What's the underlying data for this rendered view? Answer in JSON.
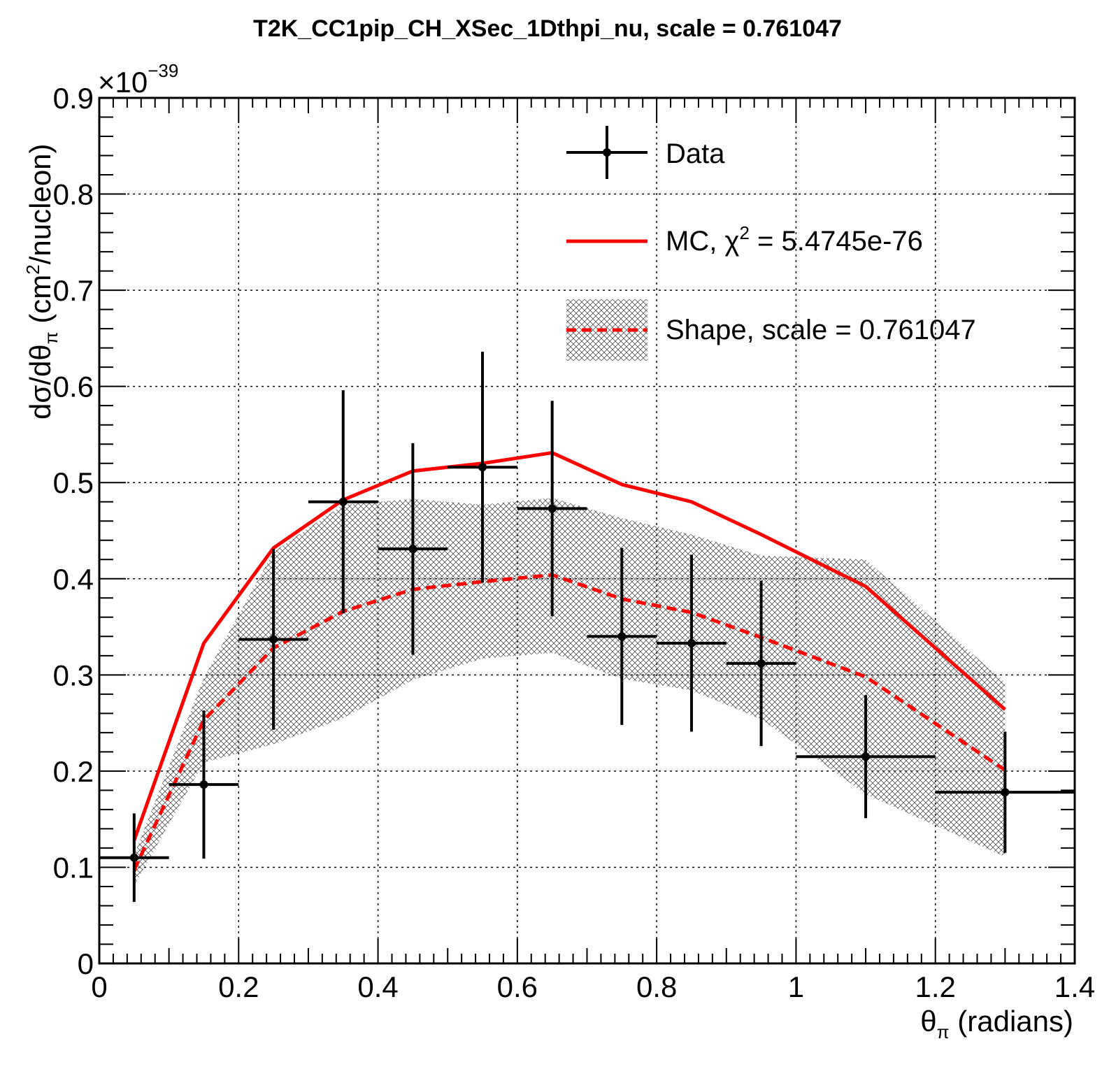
{
  "chart_data": {
    "type": "scatter",
    "title": "T2K_CC1pip_CH_XSec_1Dthpi_nu, scale = 0.761047",
    "xlabel_main": "θ",
    "xlabel_sub": "π",
    "xlabel_rest": " (radians)",
    "ylabel_a": "dσ/dθ",
    "ylabel_sub": "π",
    "ylabel_b": " (cm",
    "ylabel_sup": "2",
    "ylabel_c": "/nucleon)",
    "y_exponent_base": "×10",
    "y_exponent_power": "−39",
    "xlim": [
      0,
      1.4
    ],
    "ylim": [
      0,
      0.9
    ],
    "x_ticks": [
      0,
      0.2,
      0.4,
      0.6,
      0.8,
      1,
      1.2,
      1.4
    ],
    "x_tick_labels": [
      "0",
      "0.2",
      "0.4",
      "0.6",
      "0.8",
      "1",
      "1.2",
      "1.4"
    ],
    "y_ticks": [
      0,
      0.1,
      0.2,
      0.3,
      0.4,
      0.5,
      0.6,
      0.7,
      0.8,
      0.9
    ],
    "y_tick_labels": [
      "0",
      "0.1",
      "0.2",
      "0.3",
      "0.4",
      "0.5",
      "0.6",
      "0.7",
      "0.8",
      "0.9"
    ],
    "grid": true,
    "legend_position": "top-right",
    "legend": {
      "data": "Data",
      "mc_prefix": "MC, χ",
      "mc_sup": "2",
      "mc_suffix": " = 5.4745e-76",
      "shape": "Shape, scale = 0.761047"
    },
    "colors": {
      "data": "#000000",
      "mc": "#ff0000",
      "shape": "#ff0000",
      "band": "#444444"
    },
    "data_points": [
      {
        "x": 0.05,
        "xlo": 0.0,
        "xhi": 0.1,
        "y": 0.11,
        "err": 0.046
      },
      {
        "x": 0.15,
        "xlo": 0.1,
        "xhi": 0.2,
        "y": 0.186,
        "err": 0.077
      },
      {
        "x": 0.25,
        "xlo": 0.2,
        "xhi": 0.3,
        "y": 0.337,
        "err": 0.094
      },
      {
        "x": 0.35,
        "xlo": 0.3,
        "xhi": 0.4,
        "y": 0.48,
        "err": 0.116
      },
      {
        "x": 0.45,
        "xlo": 0.4,
        "xhi": 0.5,
        "y": 0.431,
        "err": 0.11
      },
      {
        "x": 0.55,
        "xlo": 0.5,
        "xhi": 0.6,
        "y": 0.516,
        "err": 0.12
      },
      {
        "x": 0.65,
        "xlo": 0.6,
        "xhi": 0.7,
        "y": 0.473,
        "err": 0.112
      },
      {
        "x": 0.75,
        "xlo": 0.7,
        "xhi": 0.8,
        "y": 0.34,
        "err": 0.092
      },
      {
        "x": 0.85,
        "xlo": 0.8,
        "xhi": 0.9,
        "y": 0.333,
        "err": 0.092
      },
      {
        "x": 0.95,
        "xlo": 0.9,
        "xhi": 1.0,
        "y": 0.312,
        "err": 0.086
      },
      {
        "x": 1.1,
        "xlo": 1.0,
        "xhi": 1.2,
        "y": 0.215,
        "err": 0.064
      },
      {
        "x": 1.3,
        "xlo": 1.2,
        "xhi": 1.4,
        "y": 0.178,
        "err": 0.063
      }
    ],
    "mc_x": [
      0.05,
      0.15,
      0.25,
      0.35,
      0.45,
      0.55,
      0.65,
      0.75,
      0.85,
      0.95,
      1.1,
      1.3
    ],
    "mc_y": [
      0.128,
      0.333,
      0.432,
      0.482,
      0.512,
      0.52,
      0.531,
      0.498,
      0.48,
      0.446,
      0.392,
      0.264
    ],
    "shape_x": [
      0.05,
      0.15,
      0.25,
      0.35,
      0.45,
      0.55,
      0.65,
      0.75,
      0.85,
      0.95,
      1.1,
      1.3
    ],
    "shape_y": [
      0.097,
      0.253,
      0.328,
      0.366,
      0.389,
      0.397,
      0.404,
      0.379,
      0.365,
      0.339,
      0.298,
      0.201
    ],
    "shape_band_lo": [
      0.081,
      0.209,
      0.228,
      0.255,
      0.295,
      0.317,
      0.323,
      0.296,
      0.284,
      0.254,
      0.176,
      0.111
    ],
    "shape_band_hi": [
      0.113,
      0.297,
      0.428,
      0.477,
      0.483,
      0.477,
      0.484,
      0.463,
      0.446,
      0.424,
      0.42,
      0.292
    ]
  }
}
